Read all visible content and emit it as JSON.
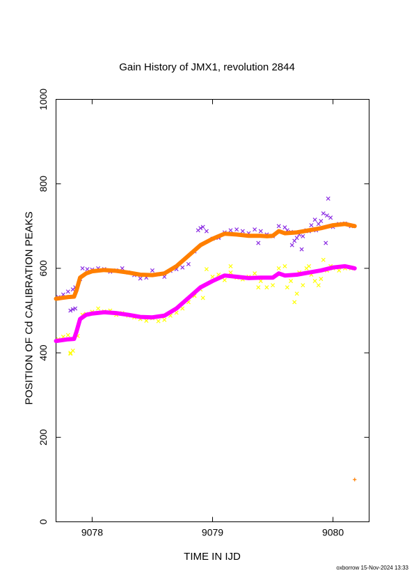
{
  "chart_data": {
    "type": "scatter",
    "title": "Gain History of JMX1, revolution 2844",
    "xlabel": "TIME IN IJD",
    "ylabel": "POSITION OF Cd CALIBRATION PEAKS",
    "xlim": [
      9077.7,
      9080.3
    ],
    "ylim": [
      0,
      1000
    ],
    "xticks": [
      9078,
      9079,
      9080
    ],
    "xtick_labels": [
      "9078",
      "9079",
      "9080"
    ],
    "yticks": [
      0,
      200,
      400,
      600,
      800,
      1000
    ],
    "ytick_labels": [
      "0",
      "200",
      "400",
      "600",
      "800",
      "1000"
    ],
    "grid": false,
    "legend": "none",
    "series": [
      {
        "marker": "x",
        "color": "#8a2be2",
        "x": [
          9077.72,
          9077.76,
          9077.8,
          9077.84,
          9077.86,
          9077.9,
          9077.92,
          9077.96,
          9078.0,
          9078.05,
          9078.1,
          9078.15,
          9078.2,
          9078.25,
          9078.3,
          9078.35,
          9078.4,
          9078.45,
          9078.5,
          9078.55,
          9078.6,
          9078.65,
          9078.7,
          9078.75,
          9078.8,
          9078.85,
          9078.88,
          9078.9,
          9078.95,
          9079.0,
          9079.05,
          9079.1,
          9079.15,
          9079.2,
          9079.25,
          9079.3,
          9079.35,
          9079.4,
          9079.45,
          9079.5,
          9079.55,
          9079.6,
          9079.62,
          9079.65,
          9079.68,
          9079.7,
          9079.72,
          9079.75,
          9079.78,
          9079.8,
          9079.82,
          9079.85,
          9079.88,
          9079.9,
          9079.92,
          9079.95,
          9079.98,
          9080.0,
          9080.05,
          9080.1,
          9080.15,
          9077.82,
          9077.84,
          9077.86,
          9078.92,
          9079.05,
          9079.38,
          9079.66,
          9079.74,
          9079.86,
          9079.94,
          9079.96
        ],
        "y": [
          532,
          538,
          545,
          550,
          555,
          575,
          600,
          598,
          597,
          600,
          598,
          592,
          595,
          600,
          590,
          584,
          576,
          578,
          595,
          586,
          580,
          594,
          598,
          602,
          610,
          640,
          690,
          695,
          688,
          670,
          675,
          685,
          690,
          692,
          688,
          683,
          692,
          688,
          680,
          676,
          700,
          697,
          690,
          686,
          665,
          672,
          680,
          676,
          690,
          688,
          702,
          715,
          705,
          712,
          730,
          725,
          720,
          698,
          705,
          706,
          700,
          500,
          503,
          505,
          698,
          672,
          660,
          655,
          645,
          690,
          660,
          765
        ]
      },
      {
        "marker": "x",
        "color": "#ffff00",
        "x": [
          9077.72,
          9077.76,
          9077.8,
          9077.82,
          9077.84,
          9077.88,
          9077.92,
          9077.95,
          9078.0,
          9078.05,
          9078.1,
          9078.15,
          9078.2,
          9078.25,
          9078.3,
          9078.35,
          9078.4,
          9078.45,
          9078.5,
          9078.55,
          9078.6,
          9078.65,
          9078.7,
          9078.75,
          9078.8,
          9078.85,
          9078.9,
          9078.95,
          9079.0,
          9079.05,
          9079.1,
          9079.15,
          9079.2,
          9079.25,
          9079.3,
          9079.35,
          9079.4,
          9079.45,
          9079.5,
          9079.55,
          9079.6,
          9079.62,
          9079.65,
          9079.68,
          9079.7,
          9079.72,
          9079.75,
          9079.78,
          9079.8,
          9079.82,
          9079.85,
          9079.88,
          9079.9,
          9079.92,
          9079.95,
          9079.98,
          9080.0,
          9080.05,
          9080.1,
          9080.15,
          9077.82,
          9078.92,
          9079.15,
          9079.38
        ],
        "y": [
          432,
          438,
          442,
          400,
          405,
          440,
          490,
          492,
          497,
          505,
          498,
          500,
          490,
          494,
          488,
          484,
          480,
          476,
          482,
          475,
          478,
          488,
          495,
          505,
          520,
          535,
          550,
          598,
          580,
          585,
          572,
          590,
          578,
          574,
          580,
          588,
          570,
          555,
          560,
          600,
          605,
          555,
          570,
          520,
          540,
          590,
          560,
          600,
          605,
          585,
          570,
          560,
          575,
          620,
          595,
          605,
          600,
          595,
          600,
          600,
          398,
          530,
          605,
          555
        ]
      },
      {
        "marker": "+",
        "color": "#ff00ff",
        "x": [
          9077.7,
          9077.75,
          9077.8,
          9077.85,
          9077.87,
          9077.9,
          9077.95,
          9078.0,
          9078.1,
          9078.2,
          9078.3,
          9078.4,
          9078.5,
          9078.6,
          9078.7,
          9078.8,
          9078.9,
          9079.0,
          9079.1,
          9079.2,
          9079.3,
          9079.4,
          9079.45,
          9079.5,
          9079.55,
          9079.6,
          9079.7,
          9079.8,
          9079.9,
          9080.0,
          9080.1,
          9080.18
        ],
        "y": [
          428,
          430,
          432,
          433,
          450,
          480,
          490,
          493,
          496,
          494,
          490,
          485,
          484,
          488,
          505,
          530,
          555,
          570,
          583,
          580,
          577,
          578,
          578,
          578,
          588,
          583,
          585,
          590,
          595,
          602,
          605,
          600
        ]
      },
      {
        "marker": "+",
        "color": "#ff7f00",
        "x": [
          9077.7,
          9077.75,
          9077.8,
          9077.85,
          9077.87,
          9077.9,
          9077.95,
          9078.0,
          9078.1,
          9078.2,
          9078.3,
          9078.4,
          9078.5,
          9078.6,
          9078.7,
          9078.8,
          9078.9,
          9079.0,
          9079.1,
          9079.2,
          9079.3,
          9079.4,
          9079.45,
          9079.5,
          9079.55,
          9079.6,
          9079.7,
          9079.8,
          9079.9,
          9080.0,
          9080.1,
          9080.18,
          9080.18
        ],
        "y": [
          528,
          530,
          532,
          533,
          548,
          578,
          588,
          593,
          596,
          594,
          590,
          585,
          584,
          588,
          605,
          630,
          655,
          670,
          682,
          680,
          677,
          677,
          676,
          677,
          688,
          683,
          685,
          690,
          695,
          702,
          705,
          700,
          100
        ]
      }
    ]
  },
  "footer": "oxborrow 15-Nov-2024 13:33"
}
